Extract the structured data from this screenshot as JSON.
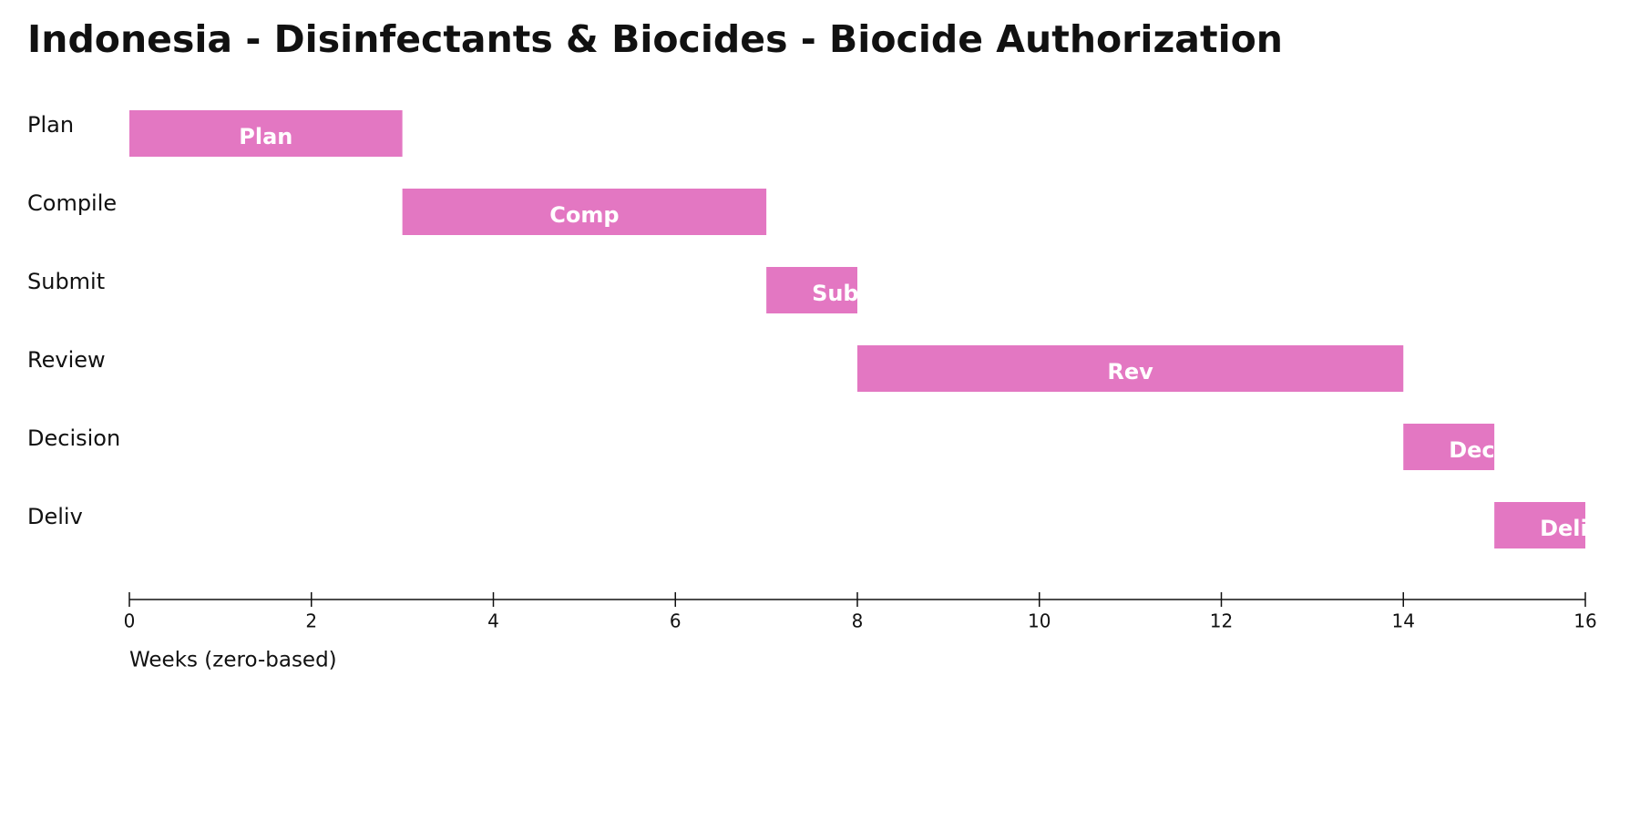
{
  "chart_data": {
    "type": "gantt",
    "title": "Indonesia - Disinfectants & Biocides - Biocide Authorization",
    "categories": [
      "Plan",
      "Compile",
      "Submit",
      "Review",
      "Decision",
      "Deliv"
    ],
    "start": [
      0,
      3,
      7,
      8,
      14,
      15
    ],
    "end": [
      3,
      7,
      8,
      14,
      15,
      16
    ],
    "bar_labels": [
      "Plan",
      "Comp",
      "Subm",
      "Rev",
      "Dec",
      "Deliv"
    ],
    "color": "#e377c2",
    "xlabel": "Weeks (zero-based)",
    "xlim": [
      0,
      16
    ],
    "xticks": [
      0,
      2,
      4,
      6,
      8,
      10,
      12,
      14,
      16
    ]
  }
}
